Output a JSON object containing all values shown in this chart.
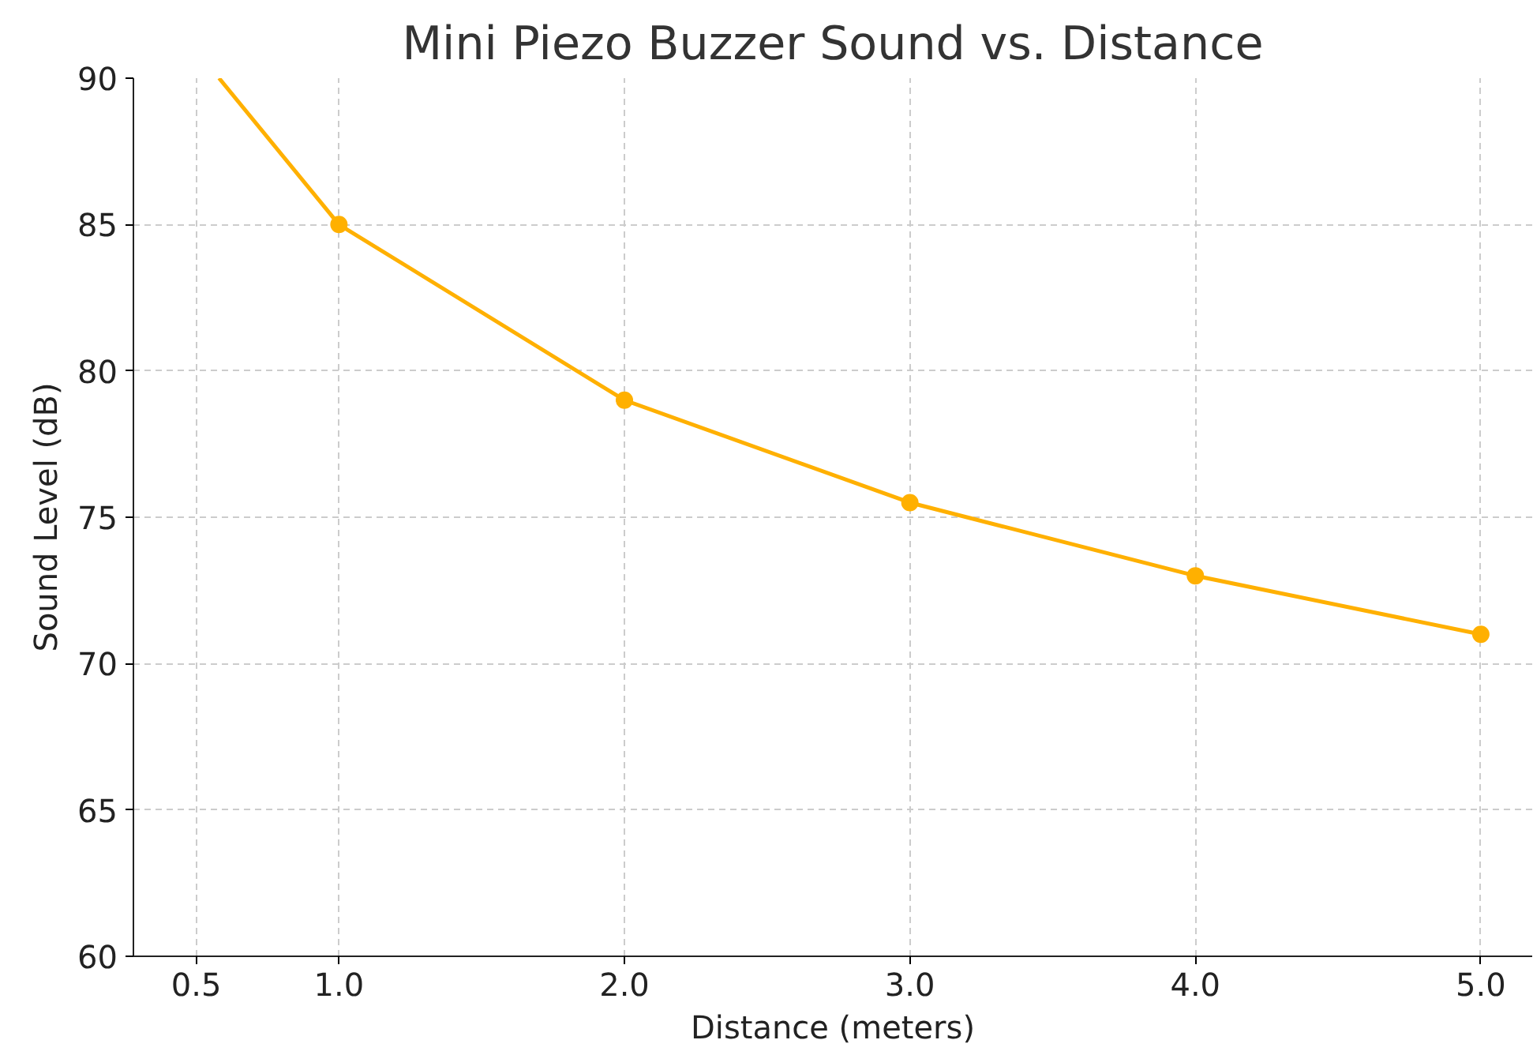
{
  "chart_data": {
    "type": "line",
    "title": "Mini Piezo Buzzer Sound vs. Distance",
    "xlabel": "Distance (meters)",
    "ylabel": "Sound Level (dB)",
    "x": [
      1.0,
      2.0,
      3.0,
      4.0,
      5.0
    ],
    "series": [
      {
        "color": "#ffb000",
        "values": [
          85,
          79,
          75.5,
          73,
          71
        ]
      },
      {
        "type": "line",
        "marker": "none",
        "color": "#ffb000",
        "x": [
          0.58,
          1.0
        ],
        "values": [
          90,
          85
        ]
      }
    ],
    "xlim": [
      0.28,
      5.18
    ],
    "ylim": [
      60,
      90
    ],
    "xticks": [
      {
        "value": 0.5,
        "label": "0.5"
      },
      {
        "value": 1.0,
        "label": "1.0"
      },
      {
        "value": 2.0,
        "label": "2.0"
      },
      {
        "value": 3.0,
        "label": "3.0"
      },
      {
        "value": 4.0,
        "label": "4.0"
      },
      {
        "value": 5.0,
        "label": "5.0"
      }
    ],
    "yticks": [
      60,
      65,
      70,
      75,
      80,
      85,
      90
    ],
    "grid": true,
    "marker": "circle",
    "line_style": "solid"
  }
}
